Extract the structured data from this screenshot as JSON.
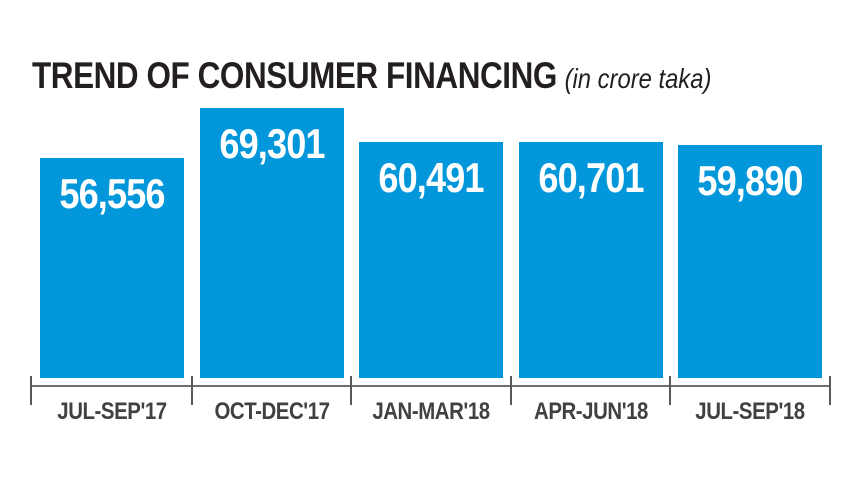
{
  "chart_data": {
    "type": "bar",
    "title": "TREND OF CONSUMER FINANCING",
    "subtitle": "(in crore taka)",
    "categories": [
      "JUL-SEP'17",
      "OCT-DEC'17",
      "JAN-MAR'18",
      "APR-JUN'18",
      "JUL-SEP'18"
    ],
    "values": [
      56556,
      69301,
      60491,
      60701,
      59890
    ],
    "value_labels": [
      "56,556",
      "69,301",
      "60,491",
      "60,701",
      "59,890"
    ],
    "xlabel": "",
    "ylabel": "",
    "ylim": [
      0,
      69301
    ],
    "grid": false,
    "legend": false,
    "colors": {
      "bar": "#0197da",
      "value_label": "#ffffff",
      "title": "#231f20",
      "axis_label": "#414042",
      "axis_line": "#6d6e71",
      "axis_tick": "#58595b",
      "background": "#ffffff"
    }
  }
}
